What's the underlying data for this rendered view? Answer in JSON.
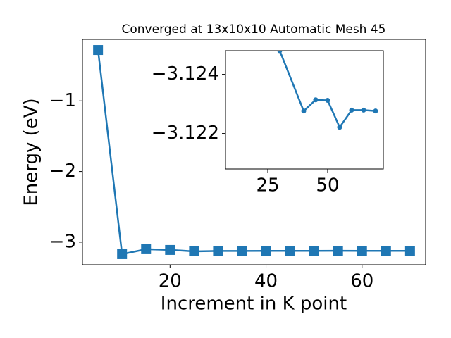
{
  "chart_data": [
    {
      "type": "line",
      "title": "Converged at 13x10x10 Automatic Mesh 45",
      "x_label": "Increment in K point",
      "y_label": "Energy (eV)",
      "x": [
        5,
        10,
        15,
        20,
        25,
        30,
        35,
        40,
        45,
        50,
        55,
        60,
        65,
        70
      ],
      "series": [
        {
          "color": "#1f77b4",
          "marker": "square",
          "values": [
            -0.28,
            -3.17,
            -3.1,
            -3.11,
            -3.13,
            -3.1248,
            -3.1242,
            -3.1228,
            -3.1231,
            -3.1231,
            -3.1222,
            -3.1228,
            -3.1228,
            -3.1228
          ]
        }
      ],
      "xlim": [
        1.75,
        73.25
      ],
      "ylim": [
        -3.32,
        -0.13
      ],
      "xticks": [
        20,
        40,
        60
      ],
      "yticks": [
        {
          "value": -3,
          "label": "−3"
        },
        {
          "value": -2,
          "label": "−2"
        },
        {
          "value": -1,
          "label": "−1"
        }
      ]
    },
    {
      "type": "line",
      "role": "inset",
      "x": [
        30,
        40,
        45,
        50,
        55,
        60,
        65,
        70
      ],
      "series": [
        {
          "color": "#1f77b4",
          "marker": "circle",
          "values": [
            -3.1248,
            -3.12276,
            -3.12314,
            -3.12312,
            -3.12221,
            -3.12279,
            -3.12279,
            -3.12276
          ]
        }
      ],
      "xlim": [
        7.35,
        73.25
      ],
      "ylim": [
        -3.1208,
        -3.1248
      ],
      "xticks": [
        25,
        50
      ],
      "yticks": [
        {
          "value": -3.124,
          "label": "−3.124"
        },
        {
          "value": -3.122,
          "label": "−3.122"
        }
      ]
    }
  ]
}
